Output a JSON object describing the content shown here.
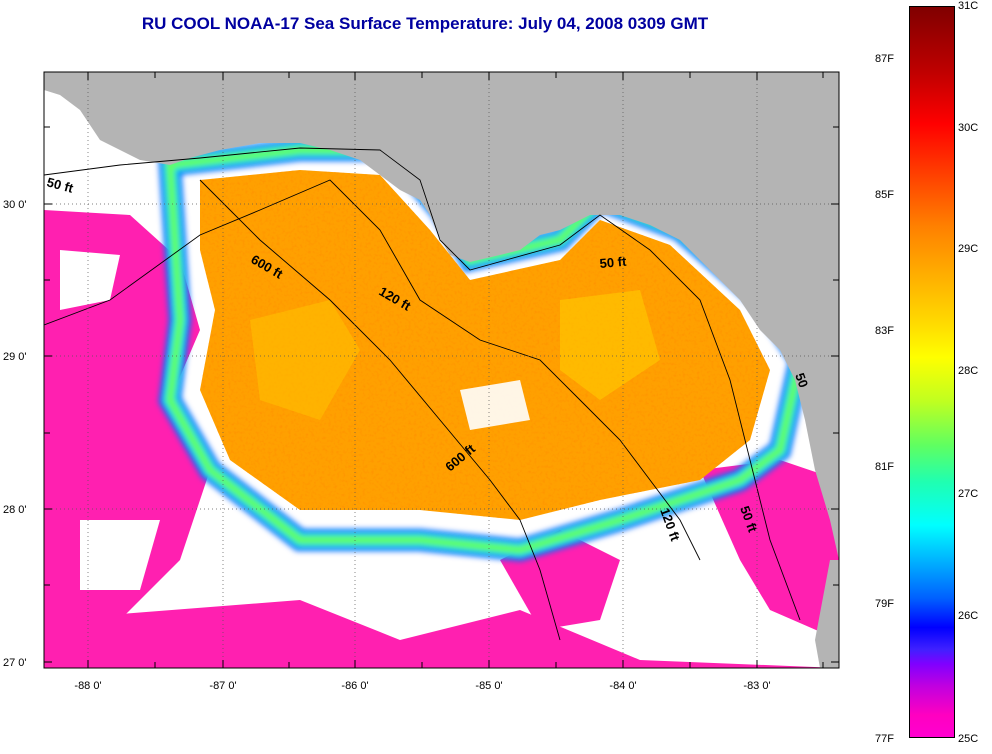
{
  "title": "RU COOL  NOAA-17  Sea Surface Temperature:  July 04, 2008 0309 GMT",
  "latitude_labels": [
    "30 0'",
    "29 0'",
    "28 0'",
    "27 0'"
  ],
  "longitude_labels": [
    "-88 0'",
    "-87 0'",
    "-86 0'",
    "-85 0'",
    "-84 0'",
    "-83 0'"
  ],
  "depth_contours": [
    {
      "label": "50 ft"
    },
    {
      "label": "600 ft"
    },
    {
      "label": "120 ft"
    },
    {
      "label": "50 ft"
    },
    {
      "label": "600 ft"
    },
    {
      "label": "120 ft"
    },
    {
      "label": "50 ft"
    },
    {
      "label": "50"
    }
  ],
  "colorbar": {
    "celsius_labels": [
      "31C",
      "30C",
      "29C",
      "28C",
      "27C",
      "26C",
      "25C"
    ],
    "fahrenheit_labels": [
      "87F",
      "85F",
      "83F",
      "81F",
      "79F",
      "77F"
    ]
  },
  "colors": {
    "land": "#b4b4b4",
    "cloud": "#ffffff",
    "warm": "#ff9000",
    "cool": "#ff20b0",
    "title": "#0000a0"
  }
}
